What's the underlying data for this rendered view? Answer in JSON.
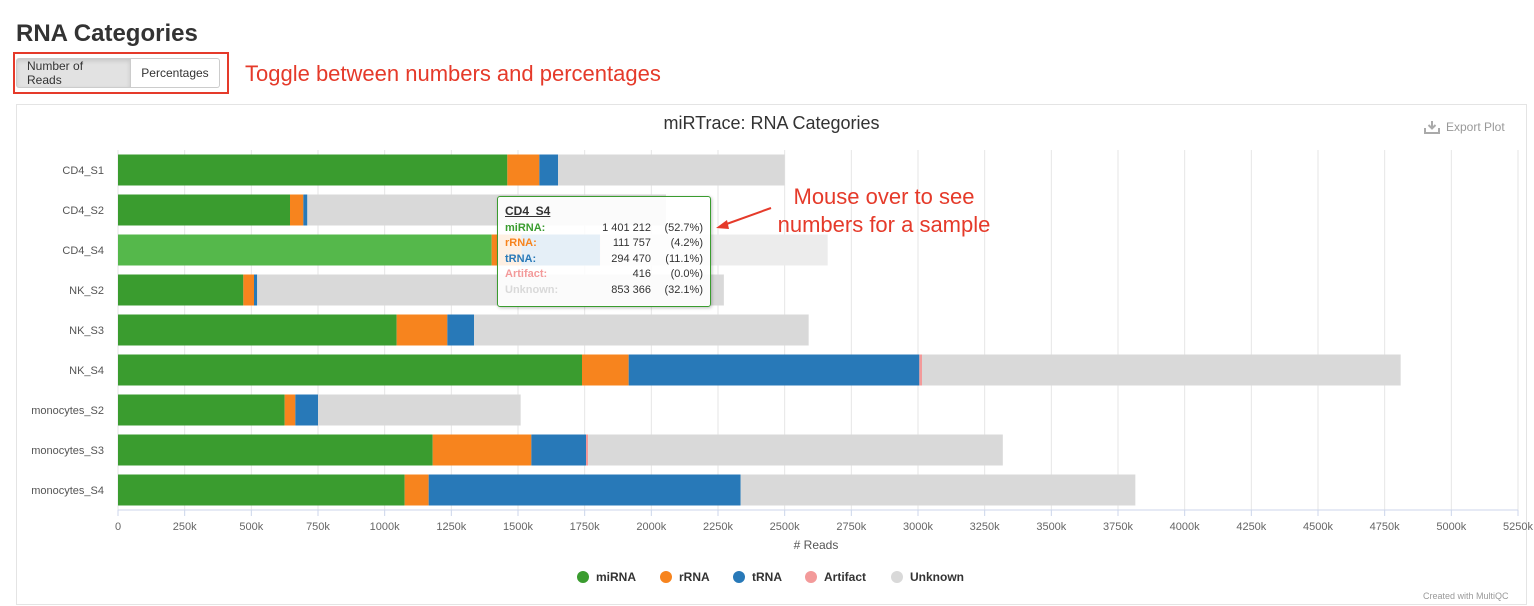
{
  "page": {
    "title": "RNA Categories",
    "toggle_buttons": [
      "Number of Reads",
      "Percentages"
    ],
    "annotation_toggle": "Toggle between numbers and percentages",
    "annotation_hover_line1": "Mouse over to see",
    "annotation_hover_line2": "numbers for a sample",
    "export_label": "Export Plot",
    "credit": "Created with MultiQC"
  },
  "colors": {
    "miRNA": "#3a9c2f",
    "rRNA": "#f7841e",
    "tRNA": "#2879b8",
    "Artifact": "#f39a9a",
    "Unknown": "#d9d9d9",
    "highlight_miRNA": "#55b84b",
    "accent_red": "#e53a2a"
  },
  "tooltip": {
    "sample": "CD4_S4",
    "rows": [
      {
        "name": "miRNA:",
        "value": "1 401 212",
        "pct": "(52.7%)",
        "color": "#3a9c2f"
      },
      {
        "name": "rRNA:",
        "value": "111 757",
        "pct": "(4.2%)",
        "color": "#f7841e"
      },
      {
        "name": "tRNA:",
        "value": "294 470",
        "pct": "(11.1%)",
        "color": "#2879b8"
      },
      {
        "name": "Artifact:",
        "value": "416",
        "pct": "(0.0%)",
        "color": "#f39a9a"
      },
      {
        "name": "Unknown:",
        "value": "853 366",
        "pct": "(32.1%)",
        "color": "#d9d9d9"
      }
    ]
  },
  "chart_data": {
    "type": "bar",
    "orientation": "horizontal",
    "stacked": true,
    "title": "miRTrace: RNA Categories",
    "xlabel": "# Reads",
    "xlim": [
      0,
      5250000
    ],
    "x_ticks": [
      0,
      250000,
      500000,
      750000,
      1000000,
      1250000,
      1500000,
      1750000,
      2000000,
      2250000,
      2500000,
      2750000,
      3000000,
      3250000,
      3500000,
      3750000,
      4000000,
      4250000,
      4500000,
      4750000,
      5000000,
      5250000
    ],
    "x_tick_labels": [
      "0",
      "250k",
      "500k",
      "750k",
      "1000k",
      "1250k",
      "1500k",
      "1750k",
      "2000k",
      "2250k",
      "2500k",
      "2750k",
      "3000k",
      "3250k",
      "3500k",
      "3750k",
      "4000k",
      "4250k",
      "4500k",
      "4750k",
      "5000k",
      "5250k"
    ],
    "grid": true,
    "legend_position": "bottom-center",
    "highlighted_category": "CD4_S4",
    "categories": [
      "CD4_S1",
      "CD4_S2",
      "CD4_S4",
      "NK_S2",
      "NK_S3",
      "NK_S4",
      "monocytes_S2",
      "monocytes_S3",
      "monocytes_S4"
    ],
    "series": [
      {
        "name": "miRNA",
        "values": [
          1460000,
          645000,
          1401212,
          470000,
          1045000,
          1740000,
          625000,
          1180000,
          1075000
        ]
      },
      {
        "name": "rRNA",
        "values": [
          120000,
          50000,
          111757,
          40000,
          190000,
          175000,
          40000,
          370000,
          90000
        ]
      },
      {
        "name": "tRNA",
        "values": [
          70000,
          15000,
          294470,
          12000,
          100000,
          1090000,
          85000,
          205000,
          1170000
        ]
      },
      {
        "name": "Artifact",
        "values": [
          0,
          0,
          416,
          0,
          0,
          10000,
          0,
          8000,
          0
        ]
      },
      {
        "name": "Unknown",
        "values": [
          850000,
          1345000,
          853366,
          1750000,
          1255000,
          1795000,
          760000,
          1555000,
          1480000
        ]
      }
    ]
  }
}
